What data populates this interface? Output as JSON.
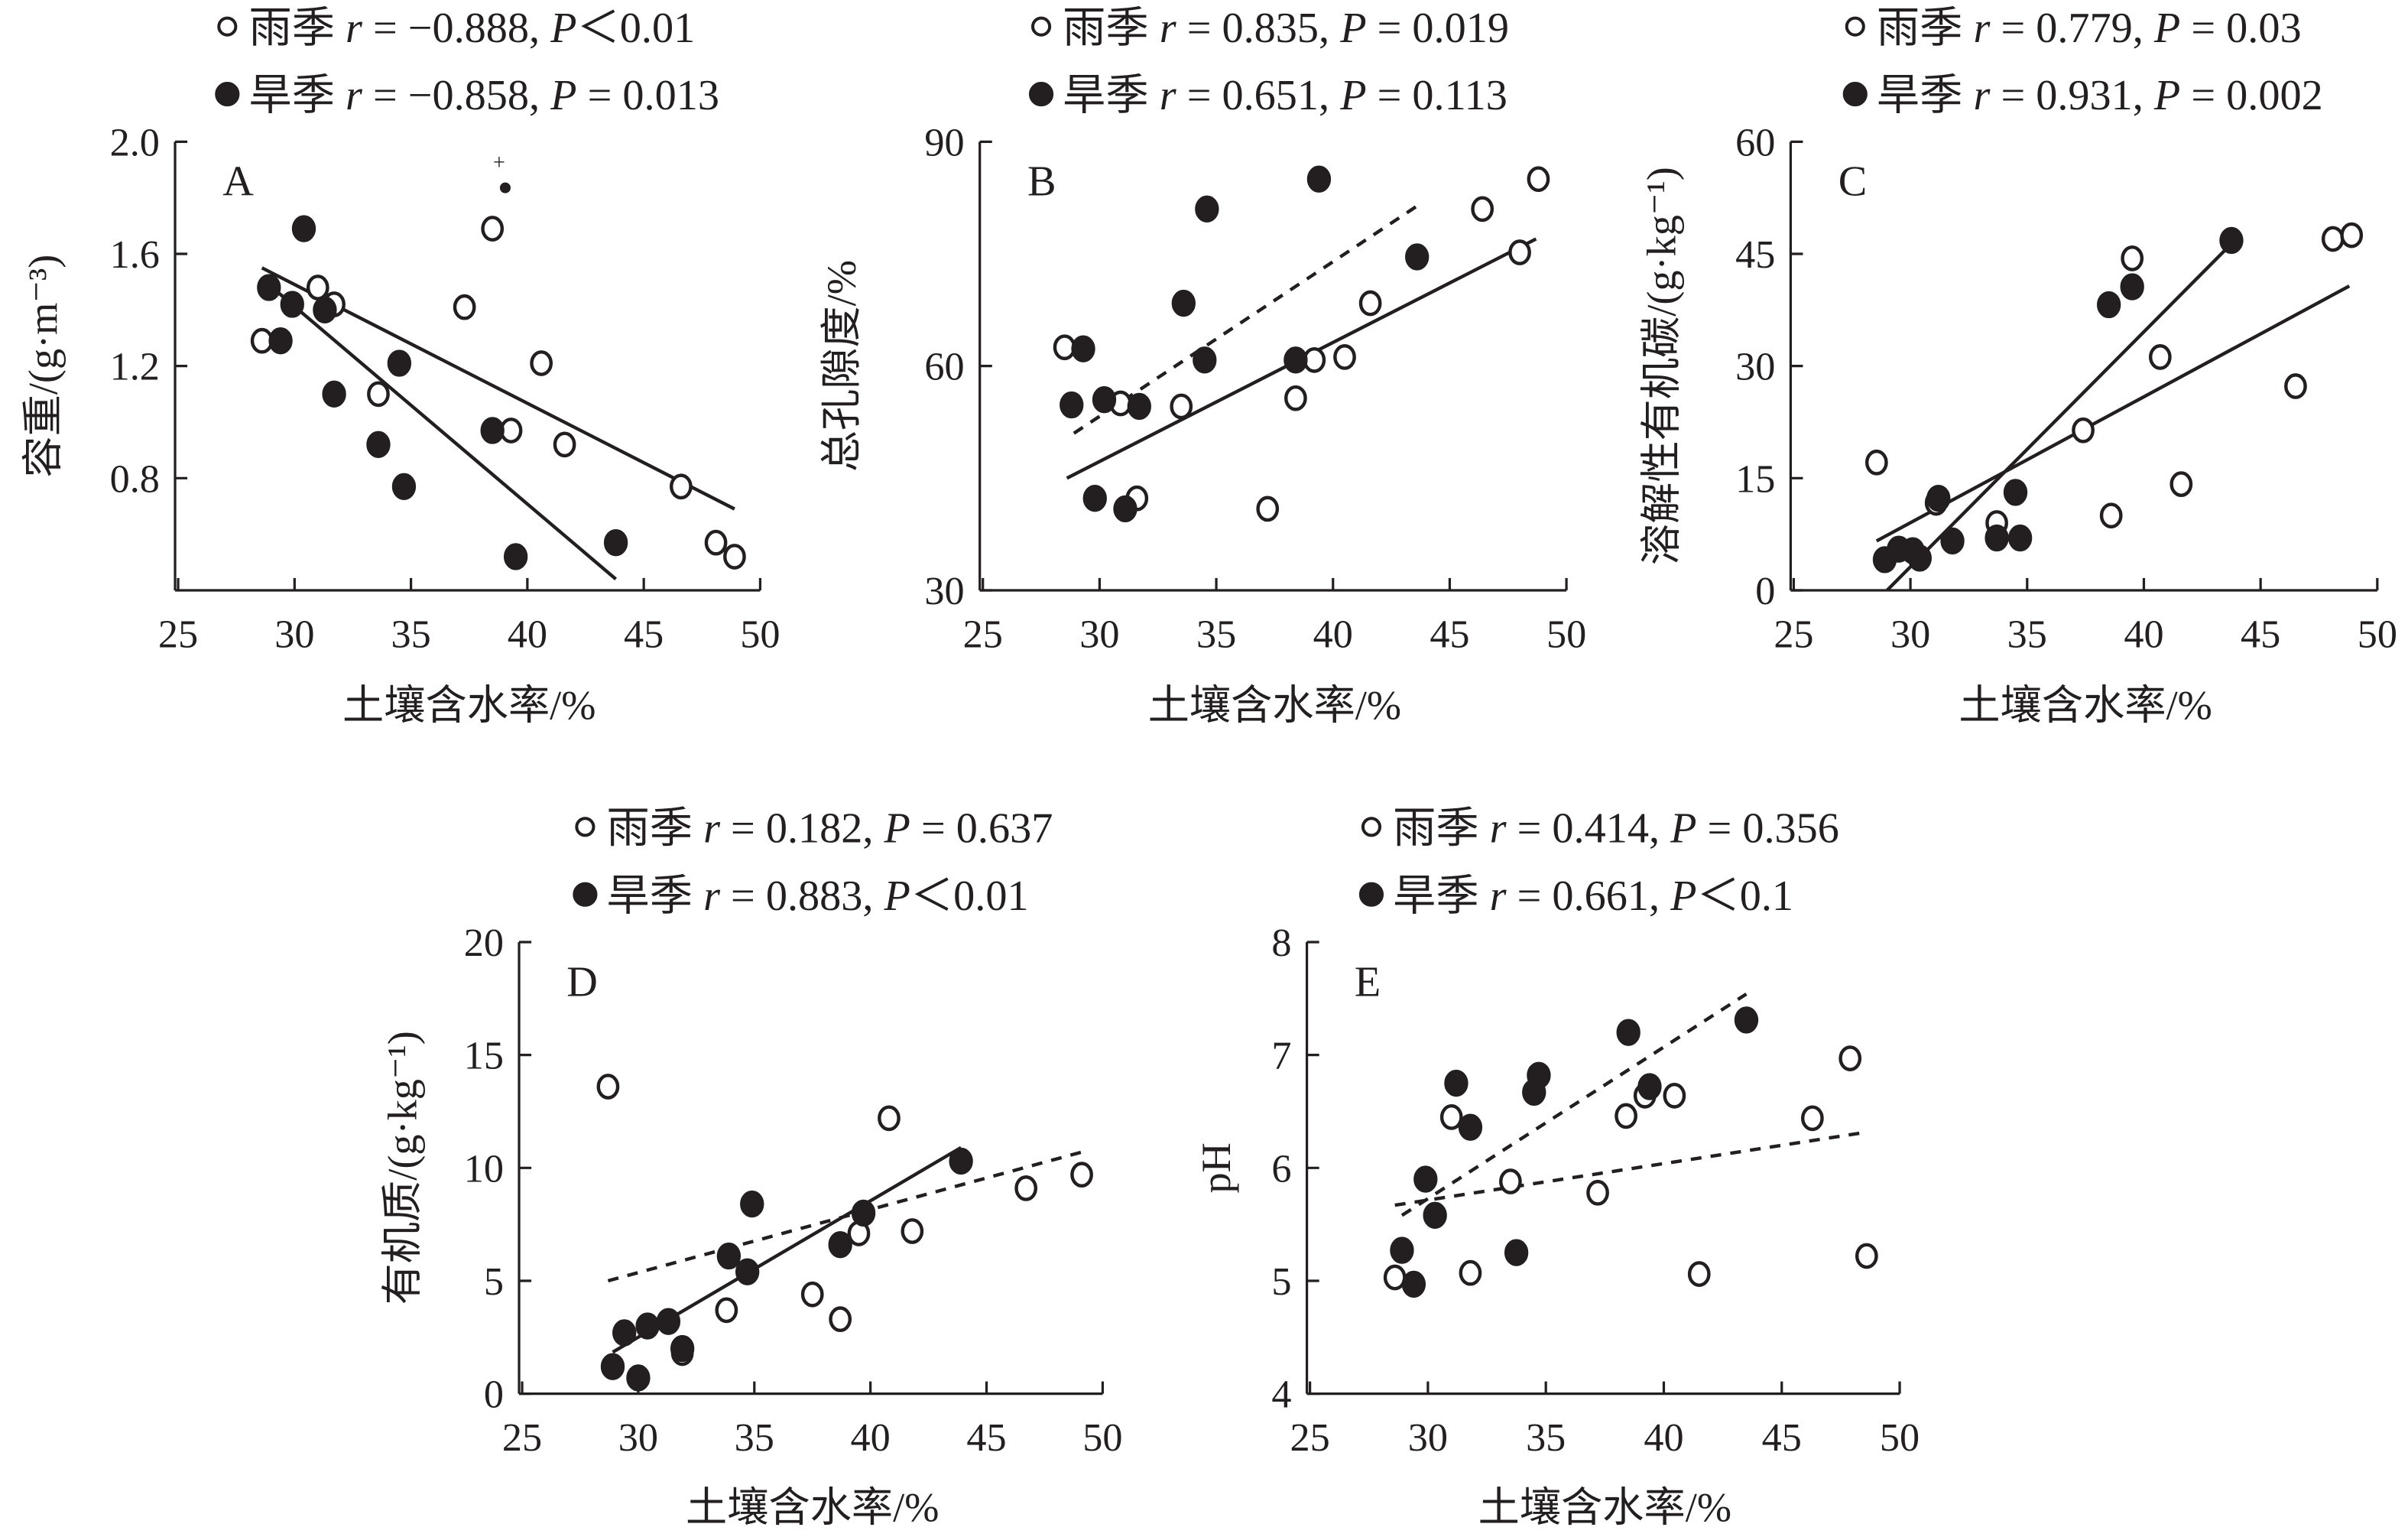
{
  "x_label": "土壤含水率/%",
  "legend_symbols": {
    "rainy": "open-circle",
    "dry": "filled-circle"
  },
  "colors": {
    "ink": "#231f20",
    "background": "#ffffff"
  },
  "chart_data": [
    {
      "type": "scatter",
      "panel": "A",
      "ylabel": "容重/(g·m⁻³)",
      "xlim": [
        25,
        50
      ],
      "xticks": [
        25,
        30,
        35,
        40,
        45,
        50
      ],
      "ylim": [
        0.4,
        2.0
      ],
      "yticks": [
        "0.8",
        "1.2",
        "1.6",
        "2.0"
      ],
      "grid": false,
      "annotation": "+",
      "legend": [
        {
          "season": "雨季",
          "r_label": "r",
          "r": "−0.888",
          "p_label": "P",
          "p_op": "<",
          "p": "0.01"
        },
        {
          "season": "旱季",
          "r_label": "r",
          "r": "−0.858",
          "p_label": "P",
          "p_op": "=",
          "p": "0.013"
        }
      ],
      "series": [
        {
          "season": "雨季",
          "marker": "open",
          "fit": "solid",
          "fit_line": [
            [
              28.6,
              1.55
            ],
            [
              48.9,
              0.69
            ]
          ],
          "x": [
            28.6,
            31.0,
            31.7,
            33.6,
            37.3,
            38.5,
            39.3,
            40.6,
            41.6,
            46.6,
            48.1,
            48.9
          ],
          "y": [
            1.29,
            1.48,
            1.42,
            1.1,
            1.41,
            1.69,
            0.97,
            1.21,
            0.92,
            0.77,
            0.57,
            0.52
          ]
        },
        {
          "season": "旱季",
          "marker": "filled",
          "fit": "solid",
          "fit_line": [
            [
              28.9,
              1.49
            ],
            [
              43.8,
              0.44
            ]
          ],
          "x": [
            28.9,
            29.9,
            29.4,
            30.4,
            31.3,
            31.7,
            33.6,
            34.5,
            34.7,
            38.5,
            39.5,
            43.8
          ],
          "y": [
            1.48,
            1.42,
            1.29,
            1.69,
            1.4,
            1.1,
            0.92,
            1.21,
            0.77,
            0.97,
            0.52,
            0.57
          ]
        }
      ]
    },
    {
      "type": "scatter",
      "panel": "B",
      "ylabel": "总孔隙度/%",
      "xlim": [
        25,
        50
      ],
      "xticks": [
        25,
        30,
        35,
        40,
        45,
        50
      ],
      "ylim": [
        30,
        90
      ],
      "yticks": [
        "30",
        "60",
        "90"
      ],
      "grid": false,
      "legend": [
        {
          "season": "雨季",
          "r_label": "r",
          "r": "0.835",
          "p_label": "P",
          "p_op": "=",
          "p": "0.019"
        },
        {
          "season": "旱季",
          "r_label": "r",
          "r": "0.651",
          "p_label": "P",
          "p_op": "=",
          "p": "0.113"
        }
      ],
      "series": [
        {
          "season": "雨季",
          "marker": "open",
          "fit": "solid",
          "fit_line": [
            [
              28.6,
              45
            ],
            [
              48.7,
              77
            ]
          ],
          "x": [
            28.5,
            30.9,
            31.6,
            33.5,
            37.2,
            38.4,
            39.2,
            40.5,
            41.6,
            46.4,
            48.0,
            48.8
          ],
          "y": [
            62.5,
            55.0,
            42.3,
            54.6,
            40.9,
            55.7,
            60.8,
            61.2,
            68.4,
            81.0,
            75.2,
            85.0
          ]
        },
        {
          "season": "旱季",
          "marker": "filled",
          "fit": "dashed",
          "fit_line": [
            [
              28.9,
              51
            ],
            [
              43.6,
              81.4
            ]
          ],
          "x": [
            29.3,
            28.8,
            29.8,
            30.2,
            31.1,
            31.7,
            33.6,
            34.5,
            34.6,
            38.4,
            39.4,
            43.6
          ],
          "y": [
            62.3,
            54.8,
            42.3,
            55.5,
            40.9,
            54.6,
            68.4,
            60.8,
            81.0,
            60.8,
            85.0,
            74.6
          ]
        }
      ]
    },
    {
      "type": "scatter",
      "panel": "C",
      "ylabel": "溶解性有机碳/(g·kg⁻¹)",
      "xlim": [
        25,
        50
      ],
      "xticks": [
        25,
        30,
        35,
        40,
        45,
        50
      ],
      "ylim": [
        0,
        60
      ],
      "yticks": [
        "0",
        "15",
        "30",
        "45",
        "60"
      ],
      "grid": false,
      "legend": [
        {
          "season": "雨季",
          "r_label": "r",
          "r": "0.779",
          "p_label": "P",
          "p_op": "=",
          "p": "0.03"
        },
        {
          "season": "旱季",
          "r_label": "r",
          "r": "0.931",
          "p_label": "P",
          "p_op": "=",
          "p": "0.002"
        }
      ],
      "series": [
        {
          "season": "雨季",
          "marker": "open",
          "fit": "solid",
          "fit_line": [
            [
              28.55,
              6.6
            ],
            [
              48.8,
              40.7
            ]
          ],
          "x": [
            28.55,
            31.1,
            33.7,
            37.4,
            38.6,
            39.5,
            40.7,
            41.6,
            46.5,
            48.1,
            48.9
          ],
          "y": [
            17.1,
            11.7,
            9.0,
            21.4,
            10.0,
            44.4,
            31.2,
            14.2,
            27.3,
            47.0,
            47.5
          ]
        },
        {
          "season": "旱季",
          "marker": "filled",
          "fit": "solid",
          "fit_line": [
            [
              29.0,
              0
            ],
            [
              43.7,
              46.2
            ]
          ],
          "x": [
            28.9,
            29.5,
            30.1,
            30.4,
            31.2,
            31.8,
            33.7,
            34.5,
            34.7,
            38.5,
            39.5,
            43.75
          ],
          "y": [
            4.1,
            5.5,
            5.3,
            4.3,
            12.3,
            6.6,
            7.0,
            13.1,
            7.0,
            38.2,
            40.6,
            46.8
          ]
        }
      ]
    },
    {
      "type": "scatter",
      "panel": "D",
      "ylabel": "有机质/(g·kg⁻¹)",
      "xlim": [
        25,
        50
      ],
      "xticks": [
        25,
        30,
        35,
        40,
        45,
        50
      ],
      "ylim": [
        0,
        20
      ],
      "yticks": [
        "0",
        "5",
        "10",
        "15",
        "20"
      ],
      "grid": false,
      "legend": [
        {
          "season": "雨季",
          "r_label": "r",
          "r": "0.182",
          "p_label": "P",
          "p_op": "=",
          "p": "0.637"
        },
        {
          "season": "旱季",
          "r_label": "r",
          "r": "0.883",
          "p_label": "P",
          "p_op": "<",
          "p": "0.01"
        }
      ],
      "series": [
        {
          "season": "雨季",
          "marker": "open",
          "fit": "dashed",
          "fit_line": [
            [
              28.7,
              5.0
            ],
            [
              49.1,
              10.7
            ]
          ],
          "x": [
            28.7,
            31.9,
            33.8,
            37.5,
            38.7,
            39.5,
            40.8,
            41.8,
            46.7,
            49.1
          ],
          "y": [
            13.6,
            1.8,
            3.7,
            4.4,
            3.3,
            7.1,
            12.2,
            7.2,
            9.1,
            9.7
          ]
        },
        {
          "season": "旱季",
          "marker": "filled",
          "fit": "solid",
          "fit_line": [
            [
              28.9,
              1.84
            ],
            [
              43.9,
              10.9
            ]
          ],
          "x": [
            28.9,
            29.4,
            30.0,
            30.4,
            31.3,
            31.9,
            33.9,
            34.7,
            34.9,
            38.7,
            39.7,
            43.9
          ],
          "y": [
            1.2,
            2.7,
            0.7,
            3.0,
            3.2,
            2.0,
            6.1,
            5.4,
            8.4,
            6.6,
            8.0,
            10.3
          ]
        }
      ]
    },
    {
      "type": "scatter",
      "panel": "E",
      "ylabel": "pH",
      "xlim": [
        25,
        50
      ],
      "xticks": [
        25,
        30,
        35,
        40,
        45,
        50
      ],
      "ylim": [
        4,
        8
      ],
      "yticks": [
        "4",
        "5",
        "6",
        "7",
        "8"
      ],
      "grid": false,
      "legend": [
        {
          "season": "雨季",
          "r_label": "r",
          "r": "0.414",
          "p_label": "P",
          "p_op": "=",
          "p": "0.356"
        },
        {
          "season": "旱季",
          "r_label": "r",
          "r": "0.661",
          "p_label": "P",
          "p_op": "<",
          "p": "0.1"
        }
      ],
      "series": [
        {
          "season": "雨季",
          "marker": "open",
          "fit": "dashed",
          "fit_line": [
            [
              28.6,
              5.67
            ],
            [
              48.4,
              6.31
            ]
          ],
          "x": [
            28.6,
            31.0,
            31.8,
            33.5,
            37.2,
            38.4,
            39.2,
            40.45,
            41.5,
            46.3,
            47.9,
            48.6
          ],
          "y": [
            5.03,
            6.45,
            5.07,
            5.88,
            5.78,
            6.46,
            6.64,
            6.64,
            5.06,
            6.44,
            6.97,
            5.22
          ]
        },
        {
          "season": "旱季",
          "marker": "filled",
          "fit": "dashed",
          "fit_line": [
            [
              28.9,
              5.58
            ],
            [
              43.5,
              7.54
            ]
          ],
          "x": [
            28.9,
            29.4,
            29.9,
            30.3,
            31.2,
            31.8,
            33.75,
            34.5,
            34.7,
            38.5,
            39.4,
            43.5
          ],
          "y": [
            5.27,
            4.97,
            5.9,
            5.58,
            6.75,
            6.36,
            5.25,
            6.67,
            6.82,
            7.2,
            6.72,
            7.31
          ]
        }
      ]
    }
  ]
}
